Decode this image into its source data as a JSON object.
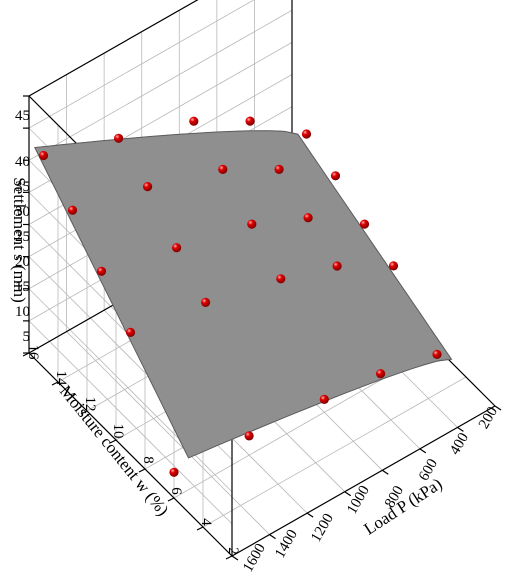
{
  "chart_data": {
    "type": "surface3d",
    "z_axis": {
      "label": "Settlement s (mm)",
      "ticks": [
        "5",
        "10",
        "15",
        "20",
        "25",
        "30",
        "35",
        "40",
        "45"
      ]
    },
    "w_axis": {
      "label": "Moisture content w (%)",
      "ticks": [
        "2",
        "4",
        "6",
        "8",
        "10",
        "12",
        "14",
        "16"
      ]
    },
    "p_axis": {
      "label": "Load P (kPa)",
      "ticks": [
        "200",
        "400",
        "600",
        "800",
        "1000",
        "1200",
        "1400",
        "1600"
      ]
    },
    "ranges": {
      "P": [
        200,
        1600
      ],
      "w": [
        2,
        16
      ],
      "s": [
        5,
        45
      ]
    },
    "grid": true,
    "colors": {
      "surface": "#8f8f8f",
      "surface_edge": "#5c5c5c",
      "points": "#e00000",
      "grid": "#b9b9b9"
    },
    "points": [
      {
        "P": 1600,
        "w": 15,
        "s": 38.0
      },
      {
        "P": 1600,
        "w": 13,
        "s": 34.0
      },
      {
        "P": 1600,
        "w": 11,
        "s": 29.0
      },
      {
        "P": 1600,
        "w": 9,
        "s": 24.0
      },
      {
        "P": 1600,
        "w": 6,
        "s": 9.0
      },
      {
        "P": 1200,
        "w": 15,
        "s": 34.0
      },
      {
        "P": 1200,
        "w": 13,
        "s": 31.0
      },
      {
        "P": 1200,
        "w": 11,
        "s": 26.0
      },
      {
        "P": 1200,
        "w": 9,
        "s": 22.0
      },
      {
        "P": 1200,
        "w": 6,
        "s": 8.0
      },
      {
        "P": 800,
        "w": 15,
        "s": 30.0
      },
      {
        "P": 800,
        "w": 13,
        "s": 27.0
      },
      {
        "P": 800,
        "w": 11,
        "s": 23.0
      },
      {
        "P": 800,
        "w": 9,
        "s": 19.0
      },
      {
        "P": 800,
        "w": 6,
        "s": 7.0
      },
      {
        "P": 500,
        "w": 15,
        "s": 25.0
      },
      {
        "P": 500,
        "w": 13,
        "s": 22.0
      },
      {
        "P": 500,
        "w": 11,
        "s": 19.0
      },
      {
        "P": 500,
        "w": 9,
        "s": 16.0
      },
      {
        "P": 500,
        "w": 6,
        "s": 6.0
      },
      {
        "P": 200,
        "w": 15,
        "s": 18.0
      },
      {
        "P": 200,
        "w": 13,
        "s": 16.0
      },
      {
        "P": 200,
        "w": 11,
        "s": 13.0
      },
      {
        "P": 200,
        "w": 9,
        "s": 11.0
      },
      {
        "P": 200,
        "w": 6,
        "s": 4.0
      }
    ]
  }
}
